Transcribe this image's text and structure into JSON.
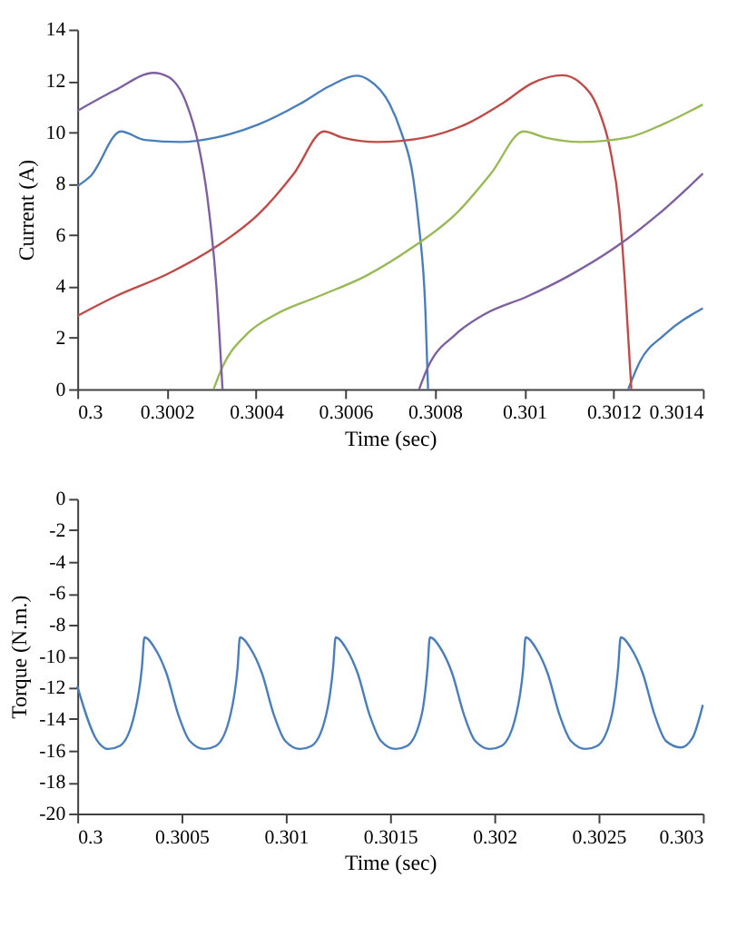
{
  "chart_data": [
    {
      "type": "line",
      "xlabel": "Time (sec)",
      "ylabel": "Current (A)",
      "xlim": [
        0.3,
        0.3014
      ],
      "ylim": [
        0,
        14
      ],
      "xticks": [
        0.3,
        0.3002,
        0.3004,
        0.3006,
        0.3008,
        0.301,
        0.3012,
        0.3014
      ],
      "yticks": [
        0,
        2,
        4,
        6,
        8,
        10,
        12,
        14
      ],
      "grid": false,
      "series": [
        {
          "color": "#4a7ebb",
          "x": [
            0.3,
            0.30003,
            0.3000975,
            0.300151,
            0.300231,
            0.300311,
            0.300405,
            0.300498,
            0.300565,
            0.300625,
            0.300652,
            0.300699,
            0.300725,
            0.300752,
            0.300765,
            0.300779,
            0.300785,
            0.301,
            0.301233,
            0.30126,
            0.301313,
            0.3014
          ],
          "values": [
            7.9,
            8.3,
            10.03,
            9.7,
            9.62,
            9.8,
            10.3,
            11.1,
            11.8,
            12.2,
            12.04,
            11.1,
            10.0,
            8.2,
            6.3,
            3.1,
            0,
            null,
            0,
            1.1,
            2.1,
            3.15
          ]
        },
        {
          "color": "#be4b48",
          "x": [
            0.3,
            0.300084,
            0.300204,
            0.300311,
            0.300405,
            0.300485,
            0.300552,
            0.300592,
            0.300672,
            0.300779,
            0.300872,
            0.300952,
            0.301019,
            0.301086,
            0.301126,
            0.301166,
            0.301193,
            0.301213,
            0.301226,
            0.30124
          ],
          "values": [
            2.85,
            3.6,
            4.5,
            5.55,
            6.8,
            8.4,
            10.03,
            9.8,
            9.62,
            9.8,
            10.33,
            11.13,
            11.92,
            12.22,
            11.92,
            10.9,
            9.3,
            7.0,
            4.06,
            0
          ]
        },
        {
          "color": "#98b954",
          "x": [
            0.300305,
            0.300325,
            0.300378,
            0.300445,
            0.300538,
            0.300645,
            0.300752,
            0.300846,
            0.300926,
            0.300999,
            0.301046,
            0.301126,
            0.301233,
            0.301313,
            0.3014
          ],
          "values": [
            0,
            0.87,
            2.12,
            2.92,
            3.6,
            4.4,
            5.54,
            6.8,
            8.4,
            10.03,
            9.8,
            9.62,
            9.8,
            10.33,
            11.08
          ]
        },
        {
          "color": "#7d60a0",
          "x": [
            0.3,
            0.300084,
            0.300171,
            0.300204,
            0.300244,
            0.300271,
            0.300291,
            0.300311,
            0.300325,
            0.3005,
            0.300765,
            0.300785,
            0.300846,
            0.300912,
            0.301006,
            0.301099,
            0.301206,
            0.3013,
            0.3014
          ],
          "values": [
            10.83,
            11.63,
            12.31,
            12.15,
            11.13,
            9.53,
            7.48,
            4.06,
            0,
            null,
            0,
            0.87,
            2.12,
            2.92,
            3.6,
            4.4,
            5.54,
            6.8,
            8.39
          ]
        }
      ]
    },
    {
      "type": "line",
      "xlabel": "Time (sec)",
      "ylabel": "Torque (N.m.)",
      "xlim": [
        0.3,
        0.303
      ],
      "ylim": [
        -20,
        0
      ],
      "xticks": [
        0.3,
        0.3005,
        0.301,
        0.3015,
        0.302,
        0.3025,
        0.303
      ],
      "yticks": [
        -20,
        -18,
        -16,
        -14,
        -12,
        -10,
        -8,
        -6,
        -4,
        -2,
        0
      ],
      "grid": false,
      "series": [
        {
          "color": "#4a7ebb",
          "x": [
            0.3,
            0.300092,
            0.300148,
            0.300204,
            0.300274,
            0.30031,
            0.300322,
            0.300372,
            0.300428,
            0.300484,
            0.30054,
            0.300609,
            0.300665,
            0.300735,
            0.300769,
            0.30078,
            0.30083,
            0.300886,
            0.300942,
            0.300998,
            0.301068,
            0.301124,
            0.301194,
            0.301227,
            0.301239,
            0.301289,
            0.301345,
            0.301401,
            0.301457,
            0.301526,
            0.301582,
            0.301652,
            0.30168,
            0.301691,
            0.301742,
            0.301798,
            0.301854,
            0.301909,
            0.301979,
            0.302035,
            0.302105,
            0.302139,
            0.30215,
            0.3022,
            0.302256,
            0.302312,
            0.302368,
            0.302438,
            0.302494,
            0.302564,
            0.302594,
            0.302606,
            0.302656,
            0.302712,
            0.302768,
            0.302824,
            0.302894,
            0.30295,
            0.303
          ],
          "values": [
            -11.9,
            -15.3,
            -15.9,
            -15.7,
            -13.7,
            -10.7,
            -8.8,
            -9.5,
            -11.1,
            -13.7,
            -15.4,
            -15.9,
            -15.7,
            -13.7,
            -10.7,
            -8.8,
            -9.5,
            -11.1,
            -13.7,
            -15.4,
            -15.9,
            -15.7,
            -13.7,
            -10.7,
            -8.8,
            -9.5,
            -11.1,
            -13.7,
            -15.4,
            -15.9,
            -15.7,
            -13.7,
            -10.7,
            -8.8,
            -9.5,
            -11.1,
            -13.7,
            -15.4,
            -15.9,
            -15.7,
            -13.7,
            -10.7,
            -8.8,
            -9.5,
            -11.1,
            -13.7,
            -15.4,
            -15.9,
            -15.7,
            -13.7,
            -10.7,
            -8.8,
            -9.5,
            -11.1,
            -13.7,
            -15.4,
            -15.8,
            -15.2,
            -13.1
          ]
        }
      ]
    }
  ]
}
